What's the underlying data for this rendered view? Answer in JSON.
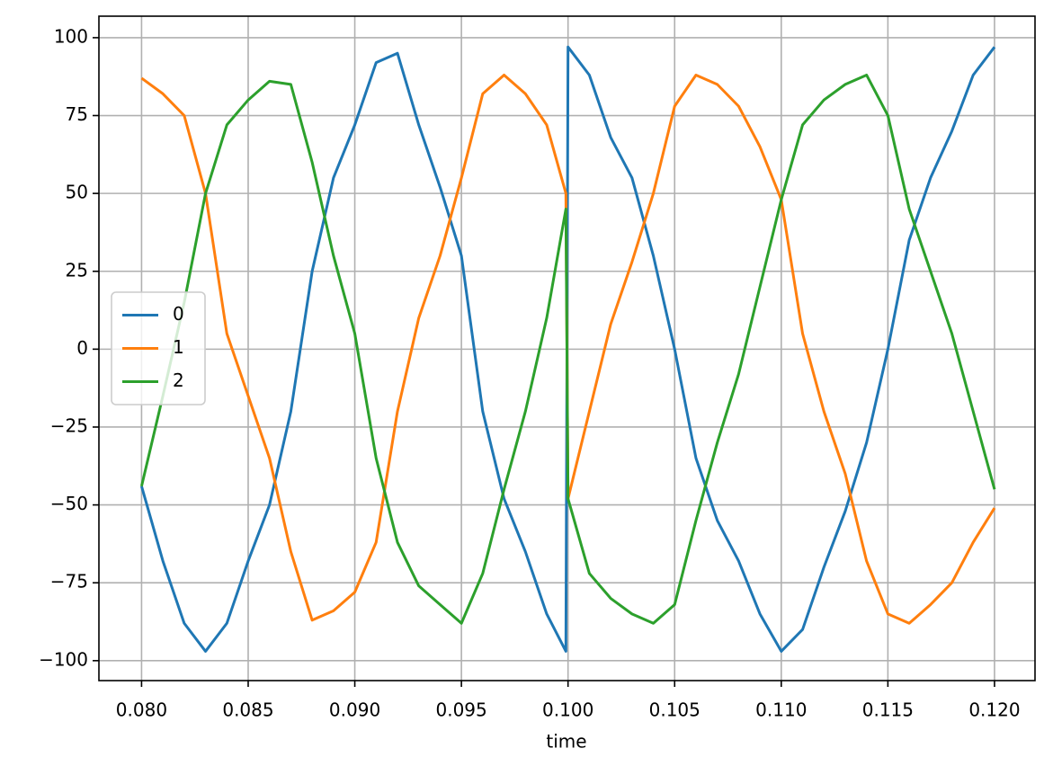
{
  "chart_data": {
    "type": "line",
    "xlabel": "time",
    "x": [
      0.08,
      0.081,
      0.082,
      0.083,
      0.084,
      0.085,
      0.086,
      0.087,
      0.088,
      0.089,
      0.09,
      0.091,
      0.092,
      0.093,
      0.094,
      0.095,
      0.096,
      0.097,
      0.098,
      0.099,
      0.0999,
      0.1,
      0.101,
      0.102,
      0.103,
      0.104,
      0.105,
      0.106,
      0.107,
      0.108,
      0.109,
      0.11,
      0.111,
      0.112,
      0.113,
      0.114,
      0.115,
      0.116,
      0.117,
      0.118,
      0.119,
      0.12
    ],
    "series": [
      {
        "name": "0",
        "color": "#1f77b4",
        "values": [
          -44,
          -68,
          -88,
          -97,
          -88,
          -68,
          -50,
          -20,
          25,
          55,
          72,
          92,
          95,
          72,
          52,
          30,
          -20,
          -48,
          -65,
          -85,
          -97,
          97,
          88,
          68,
          55,
          30,
          0,
          -35,
          -55,
          -68,
          -85,
          -97,
          -90,
          -70,
          -52,
          -30,
          0,
          35,
          55,
          70,
          88,
          97
        ]
      },
      {
        "name": "1",
        "color": "#ff7f0e",
        "values": [
          87,
          82,
          75,
          50,
          5,
          -15,
          -35,
          -65,
          -87,
          -84,
          -78,
          -62,
          -20,
          10,
          30,
          55,
          82,
          88,
          82,
          72,
          50,
          -48,
          -20,
          8,
          28,
          50,
          78,
          88,
          85,
          78,
          65,
          48,
          5,
          -20,
          -40,
          -68,
          -85,
          -88,
          -82,
          -75,
          -62,
          -51
        ]
      },
      {
        "name": "2",
        "color": "#2ca02c",
        "values": [
          -44,
          -15,
          15,
          50,
          72,
          80,
          86,
          85,
          60,
          30,
          5,
          -35,
          -62,
          -76,
          -82,
          -88,
          -72,
          -45,
          -20,
          10,
          45,
          -48,
          -72,
          -80,
          -85,
          -88,
          -82,
          -55,
          -30,
          -8,
          20,
          48,
          72,
          80,
          85,
          88,
          75,
          45,
          25,
          5,
          -20,
          -45
        ]
      }
    ],
    "xlim": [
      0.078,
      0.1219
    ],
    "ylim": [
      -106.4,
      106.9
    ],
    "xticks": [
      {
        "value": 0.08,
        "label": "0.080"
      },
      {
        "value": 0.085,
        "label": "0.085"
      },
      {
        "value": 0.09,
        "label": "0.090"
      },
      {
        "value": 0.095,
        "label": "0.095"
      },
      {
        "value": 0.1,
        "label": "0.100"
      },
      {
        "value": 0.105,
        "label": "0.105"
      },
      {
        "value": 0.11,
        "label": "0.110"
      },
      {
        "value": 0.115,
        "label": "0.115"
      },
      {
        "value": 0.12,
        "label": "0.120"
      }
    ],
    "yticks": [
      {
        "value": -100,
        "label": "−100"
      },
      {
        "value": -75,
        "label": "−75"
      },
      {
        "value": -50,
        "label": "−50"
      },
      {
        "value": -25,
        "label": "−25"
      },
      0,
      25,
      50,
      75,
      100
    ],
    "grid": true,
    "legend": "center left"
  }
}
